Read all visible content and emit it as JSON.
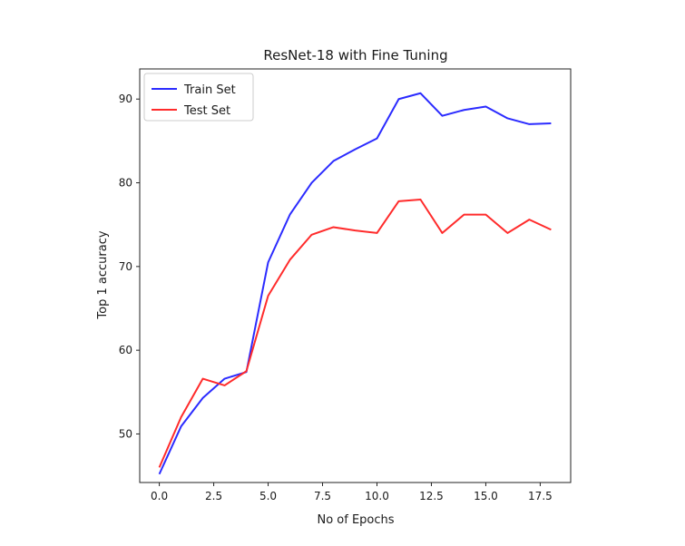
{
  "chart_data": {
    "type": "line",
    "title": "ResNet-18 with Fine Tuning",
    "xlabel": "No of Epochs",
    "ylabel": "Top 1 accuracy",
    "xlim": [
      -0.9,
      18.9
    ],
    "ylim": [
      44.2,
      93.6
    ],
    "xticks": [
      0.0,
      2.5,
      5.0,
      7.5,
      10.0,
      12.5,
      15.0,
      17.5
    ],
    "xtick_labels": [
      "0.0",
      "2.5",
      "5.0",
      "7.5",
      "10.0",
      "12.5",
      "15.0",
      "17.5"
    ],
    "yticks": [
      50,
      60,
      70,
      80,
      90
    ],
    "ytick_labels": [
      "50",
      "60",
      "70",
      "80",
      "90"
    ],
    "grid": false,
    "legend_position": "top-left",
    "x": [
      0,
      1,
      2,
      3,
      4,
      5,
      6,
      7,
      8,
      9,
      10,
      11,
      12,
      13,
      14,
      15,
      16,
      17,
      18
    ],
    "series": [
      {
        "name": "Train Set",
        "color": "#2b2bff",
        "values": [
          45.2,
          50.9,
          54.3,
          56.6,
          57.4,
          70.5,
          76.2,
          80.0,
          82.6,
          84.0,
          85.3,
          90.0,
          90.7,
          88.0,
          88.7,
          89.1,
          87.7,
          87.0,
          87.1
        ]
      },
      {
        "name": "Test Set",
        "color": "#ff2b2b",
        "values": [
          46.0,
          52.0,
          56.6,
          55.8,
          57.5,
          66.5,
          70.8,
          73.8,
          74.7,
          74.3,
          74.0,
          77.8,
          78.0,
          74.0,
          76.2,
          76.2,
          74.0,
          75.6,
          74.4
        ]
      }
    ]
  }
}
